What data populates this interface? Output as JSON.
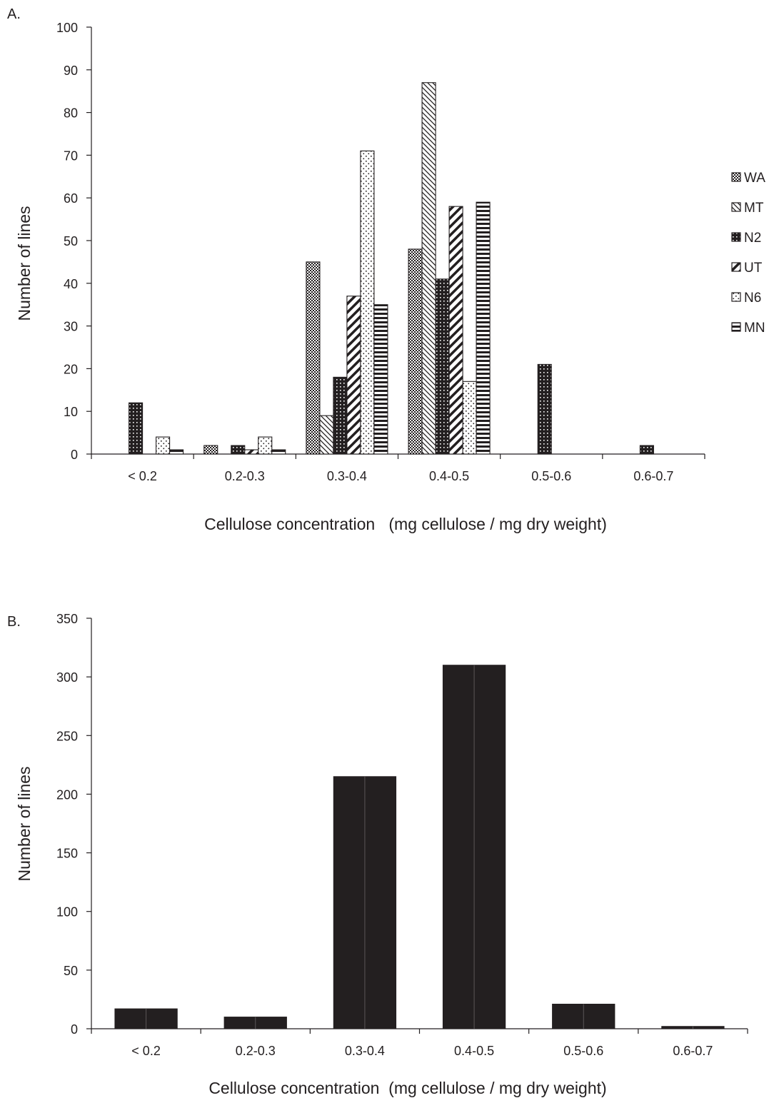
{
  "chart_data": [
    {
      "type": "bar",
      "panel_label": "A.",
      "categories": [
        "< 0.2",
        "0.2-0.3",
        "0.3-0.4",
        "0.4-0.5",
        "0.5-0.6",
        "0.6-0.7"
      ],
      "series": [
        {
          "name": "WA",
          "values": [
            0,
            2,
            45,
            48,
            0,
            0
          ],
          "pattern": "checker"
        },
        {
          "name": "MT",
          "values": [
            0,
            0,
            9,
            87,
            0,
            0
          ],
          "pattern": "diag-down"
        },
        {
          "name": "N2",
          "values": [
            12,
            2,
            18,
            41,
            21,
            2
          ],
          "pattern": "dark-dots"
        },
        {
          "name": "UT",
          "values": [
            0,
            1,
            37,
            58,
            0,
            0
          ],
          "pattern": "diag-up"
        },
        {
          "name": "N6",
          "values": [
            4,
            4,
            71,
            17,
            0,
            0
          ],
          "pattern": "sparse-dots"
        },
        {
          "name": "MN",
          "values": [
            1,
            1,
            35,
            59,
            0,
            0
          ],
          "pattern": "horizontal"
        }
      ],
      "ylabel": "Number of lines",
      "xlabel": "Cellulose concentration   (mg cellulose / mg dry weight)",
      "ylim": [
        0,
        100
      ],
      "yticks": [
        "0",
        "10",
        "20",
        "30",
        "40",
        "50",
        "60",
        "70",
        "80",
        "90",
        "100"
      ],
      "legend_position": "right",
      "grid": false
    },
    {
      "type": "bar",
      "panel_label": "B.",
      "categories": [
        "< 0.2",
        "0.2-0.3",
        "0.3-0.4",
        "0.4-0.5",
        "0.5-0.6",
        "0.6-0.7"
      ],
      "values": [
        17,
        10,
        215,
        310,
        21,
        2
      ],
      "color": "#231f20",
      "ylabel": "Number of lines",
      "xlabel": "Cellulose concentration  (mg cellulose / mg dry weight)",
      "ylim": [
        0,
        350
      ],
      "yticks": [
        "0",
        "50",
        "100",
        "150",
        "200",
        "250",
        "300",
        "350"
      ],
      "grid": false
    }
  ]
}
